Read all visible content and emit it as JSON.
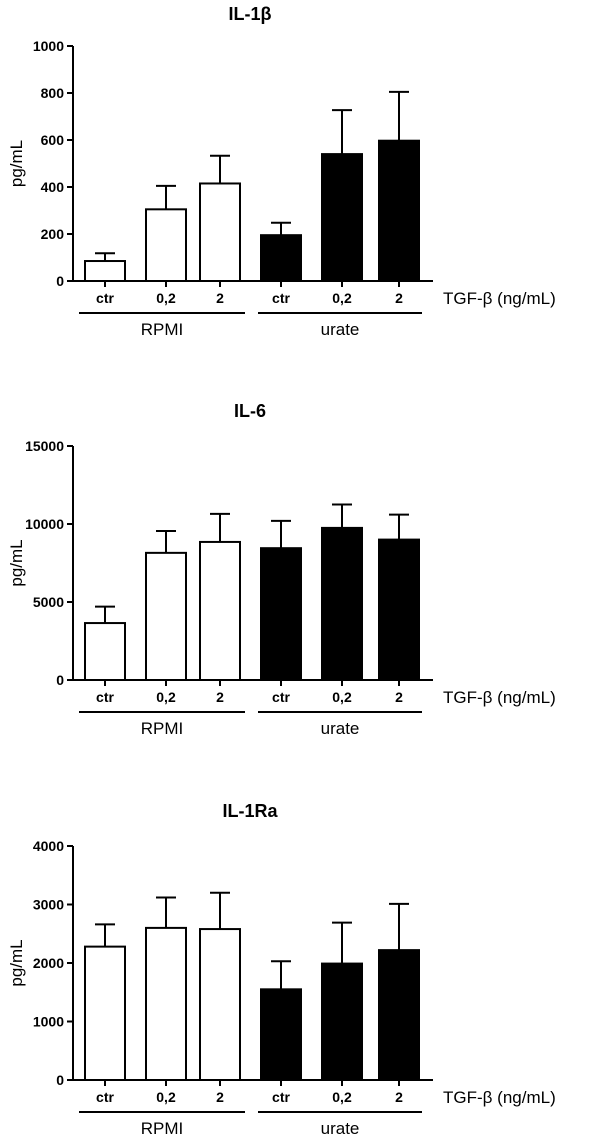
{
  "chart_data": [
    {
      "type": "bar",
      "title": "IL-1β",
      "ylabel": "pg/mL",
      "xlabel": "TGF-β (ng/mL)",
      "ylim": [
        0,
        1000
      ],
      "yticks": [
        "0",
        "200",
        "400",
        "600",
        "800",
        "1000"
      ],
      "categories": [
        "ctr",
        "0,2",
        "2",
        "ctr",
        "0,2",
        "2"
      ],
      "groups": [
        {
          "name": "RPMI",
          "fill": "#ffffff",
          "indices": [
            0,
            1,
            2
          ]
        },
        {
          "name": "urate",
          "fill": "#000000",
          "indices": [
            3,
            4,
            5
          ]
        }
      ],
      "values": [
        85,
        305,
        415,
        195,
        540,
        597
      ],
      "error_upper": [
        118,
        405,
        533,
        248,
        727,
        805
      ],
      "grid": false
    },
    {
      "type": "bar",
      "title": "IL-6",
      "ylabel": "pg/mL",
      "xlabel": "TGF-β (ng/mL)",
      "ylim": [
        0,
        15000
      ],
      "yticks": [
        "0",
        "5000",
        "10000",
        "15000"
      ],
      "categories": [
        "ctr",
        "0,2",
        "2",
        "ctr",
        "0,2",
        "2"
      ],
      "groups": [
        {
          "name": "RPMI",
          "fill": "#ffffff",
          "indices": [
            0,
            1,
            2
          ]
        },
        {
          "name": "urate",
          "fill": "#000000",
          "indices": [
            3,
            4,
            5
          ]
        }
      ],
      "values": [
        3650,
        8150,
        8850,
        8450,
        9750,
        9000
      ],
      "error_upper": [
        4700,
        9550,
        10650,
        10200,
        11250,
        10600
      ],
      "grid": false
    },
    {
      "type": "bar",
      "title": "IL-1Ra",
      "ylabel": "pg/mL",
      "xlabel": "TGF-β (ng/mL)",
      "ylim": [
        0,
        4000
      ],
      "yticks": [
        "0",
        "1000",
        "2000",
        "3000",
        "4000"
      ],
      "categories": [
        "ctr",
        "0,2",
        "2",
        "ctr",
        "0,2",
        "2"
      ],
      "groups": [
        {
          "name": "RPMI",
          "fill": "#ffffff",
          "indices": [
            0,
            1,
            2
          ]
        },
        {
          "name": "urate",
          "fill": "#000000",
          "indices": [
            3,
            4,
            5
          ]
        }
      ],
      "values": [
        2280,
        2600,
        2580,
        1550,
        1990,
        2220
      ],
      "error_upper": [
        2660,
        3120,
        3200,
        2030,
        2690,
        3010
      ],
      "grid": false
    }
  ]
}
